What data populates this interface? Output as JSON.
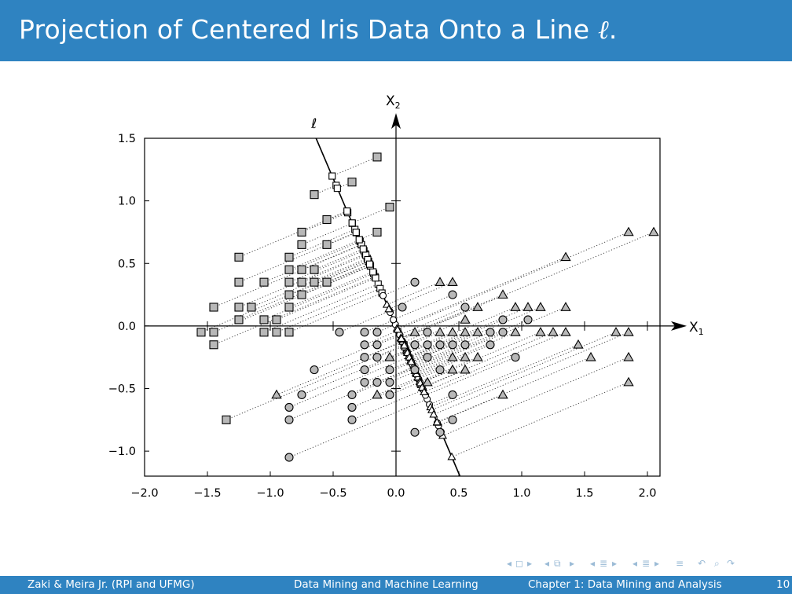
{
  "slide": {
    "title_prefix": "Projection of Centered Iris Data Onto a Line ",
    "title_symbol": "ℓ",
    "title_suffix": "."
  },
  "footer": {
    "authors": "Zaki & Meira Jr.  (RPI and UFMG)",
    "book": "Data Mining and Machine Learning",
    "chapter": "Chapter 1: Data Mining and Analysis",
    "page": "10"
  },
  "navigation": {
    "icons": [
      "first-frame-icon",
      "prev-frame-icon",
      "prev-slide-icon",
      "slide-icon",
      "next-slide-icon",
      "prev-section-icon",
      "section-icon",
      "next-section-icon",
      "prev-subsection-icon",
      "subsection-icon",
      "next-subsection-icon",
      "toc-icon",
      "search-icon"
    ]
  },
  "colors": {
    "accent": "#2f83c1",
    "marker_fill": "#b8b8b8",
    "nav": "#9bbbd6"
  },
  "chart_data": {
    "type": "scatter",
    "title": "",
    "xlabel": "X1",
    "ylabel": "X2",
    "line_label": "ℓ",
    "xlim": [
      -2.0,
      2.1
    ],
    "ylim": [
      -1.2,
      1.5
    ],
    "xticks": [
      "−2.0",
      "−1.5",
      "−1.0",
      "−0.5",
      "0.0",
      "0.5",
      "1.0",
      "1.5",
      "2.0"
    ],
    "yticks": [
      "−1.0",
      "−0.5",
      "0.0",
      "0.5",
      "1.0",
      "1.5"
    ],
    "xtick_values": [
      -2.0,
      -1.5,
      -1.0,
      -0.5,
      0.0,
      0.5,
      1.0,
      1.5,
      2.0
    ],
    "ytick_values": [
      -1.0,
      -0.5,
      0.0,
      0.5,
      1.0,
      1.5
    ],
    "line_direction": [
      -0.39,
      0.92
    ],
    "series": [
      {
        "marker": "square",
        "points": [
          [
            -1.45,
            0.15
          ],
          [
            -1.55,
            -0.05
          ],
          [
            -1.45,
            -0.05
          ],
          [
            -1.45,
            -0.15
          ],
          [
            -1.35,
            -0.75
          ],
          [
            -1.25,
            0.55
          ],
          [
            -1.25,
            0.35
          ],
          [
            -1.25,
            0.15
          ],
          [
            -1.25,
            0.05
          ],
          [
            -1.15,
            0.15
          ],
          [
            -1.05,
            0.35
          ],
          [
            -1.05,
            0.05
          ],
          [
            -1.05,
            -0.05
          ],
          [
            -0.95,
            0.05
          ],
          [
            -0.95,
            -0.05
          ],
          [
            -0.85,
            0.55
          ],
          [
            -0.85,
            0.45
          ],
          [
            -0.85,
            0.35
          ],
          [
            -0.85,
            0.25
          ],
          [
            -0.85,
            0.15
          ],
          [
            -0.85,
            -0.05
          ],
          [
            -0.75,
            0.75
          ],
          [
            -0.75,
            0.65
          ],
          [
            -0.75,
            0.45
          ],
          [
            -0.75,
            0.35
          ],
          [
            -0.75,
            0.25
          ],
          [
            -0.65,
            1.05
          ],
          [
            -0.65,
            0.45
          ],
          [
            -0.65,
            0.35
          ],
          [
            -0.55,
            0.85
          ],
          [
            -0.55,
            0.65
          ],
          [
            -0.55,
            0.35
          ],
          [
            -0.35,
            1.15
          ],
          [
            -0.15,
            1.35
          ],
          [
            -0.15,
            0.75
          ],
          [
            -0.05,
            0.95
          ]
        ]
      },
      {
        "marker": "circle",
        "points": [
          [
            -0.45,
            -0.05
          ],
          [
            -0.25,
            -0.05
          ],
          [
            -0.25,
            -0.15
          ],
          [
            -0.25,
            -0.25
          ],
          [
            -0.25,
            -0.35
          ],
          [
            -0.25,
            -0.45
          ],
          [
            -0.35,
            -0.55
          ],
          [
            -0.35,
            -0.65
          ],
          [
            -0.35,
            -0.75
          ],
          [
            -0.15,
            -0.05
          ],
          [
            -0.15,
            -0.15
          ],
          [
            -0.15,
            -0.25
          ],
          [
            -0.15,
            -0.45
          ],
          [
            -0.05,
            -0.35
          ],
          [
            -0.05,
            -0.45
          ],
          [
            -0.05,
            -0.55
          ],
          [
            -0.65,
            -0.35
          ],
          [
            -0.75,
            -0.55
          ],
          [
            -0.85,
            -0.65
          ],
          [
            -0.85,
            -0.75
          ],
          [
            -0.85,
            -1.05
          ],
          [
            0.05,
            0.15
          ],
          [
            0.15,
            0.35
          ],
          [
            0.15,
            -0.15
          ],
          [
            0.15,
            -0.35
          ],
          [
            0.15,
            -0.85
          ],
          [
            0.25,
            -0.05
          ],
          [
            0.25,
            -0.15
          ],
          [
            0.25,
            -0.25
          ],
          [
            0.35,
            -0.15
          ],
          [
            0.35,
            -0.35
          ],
          [
            0.35,
            -0.85
          ],
          [
            0.45,
            0.25
          ],
          [
            0.45,
            -0.15
          ],
          [
            0.45,
            -0.55
          ],
          [
            0.45,
            -0.75
          ],
          [
            0.55,
            0.15
          ],
          [
            0.55,
            -0.15
          ],
          [
            0.75,
            -0.05
          ],
          [
            0.75,
            -0.15
          ],
          [
            0.85,
            0.05
          ],
          [
            0.85,
            -0.05
          ],
          [
            0.95,
            -0.25
          ],
          [
            1.05,
            0.05
          ]
        ]
      },
      {
        "marker": "triangle",
        "points": [
          [
            -0.05,
            -0.25
          ],
          [
            -0.15,
            -0.55
          ],
          [
            -0.95,
            -0.55
          ],
          [
            0.15,
            -0.05
          ],
          [
            0.25,
            -0.45
          ],
          [
            0.35,
            0.35
          ],
          [
            0.35,
            -0.05
          ],
          [
            0.45,
            0.35
          ],
          [
            0.45,
            -0.05
          ],
          [
            0.45,
            -0.25
          ],
          [
            0.45,
            -0.35
          ],
          [
            0.55,
            0.05
          ],
          [
            0.55,
            -0.05
          ],
          [
            0.55,
            -0.25
          ],
          [
            0.55,
            -0.35
          ],
          [
            0.65,
            0.15
          ],
          [
            0.65,
            -0.05
          ],
          [
            0.65,
            -0.25
          ],
          [
            0.85,
            0.25
          ],
          [
            0.85,
            -0.55
          ],
          [
            0.95,
            0.15
          ],
          [
            0.95,
            -0.05
          ],
          [
            1.05,
            0.15
          ],
          [
            1.15,
            -0.05
          ],
          [
            1.25,
            -0.05
          ],
          [
            1.35,
            0.55
          ],
          [
            1.35,
            0.15
          ],
          [
            1.35,
            -0.05
          ],
          [
            1.45,
            -0.15
          ],
          [
            1.55,
            -0.25
          ],
          [
            1.75,
            -0.05
          ],
          [
            1.85,
            0.75
          ],
          [
            1.85,
            -0.05
          ],
          [
            1.85,
            -0.25
          ],
          [
            1.85,
            -0.45
          ],
          [
            2.05,
            0.75
          ],
          [
            1.15,
            0.15
          ]
        ]
      }
    ]
  }
}
